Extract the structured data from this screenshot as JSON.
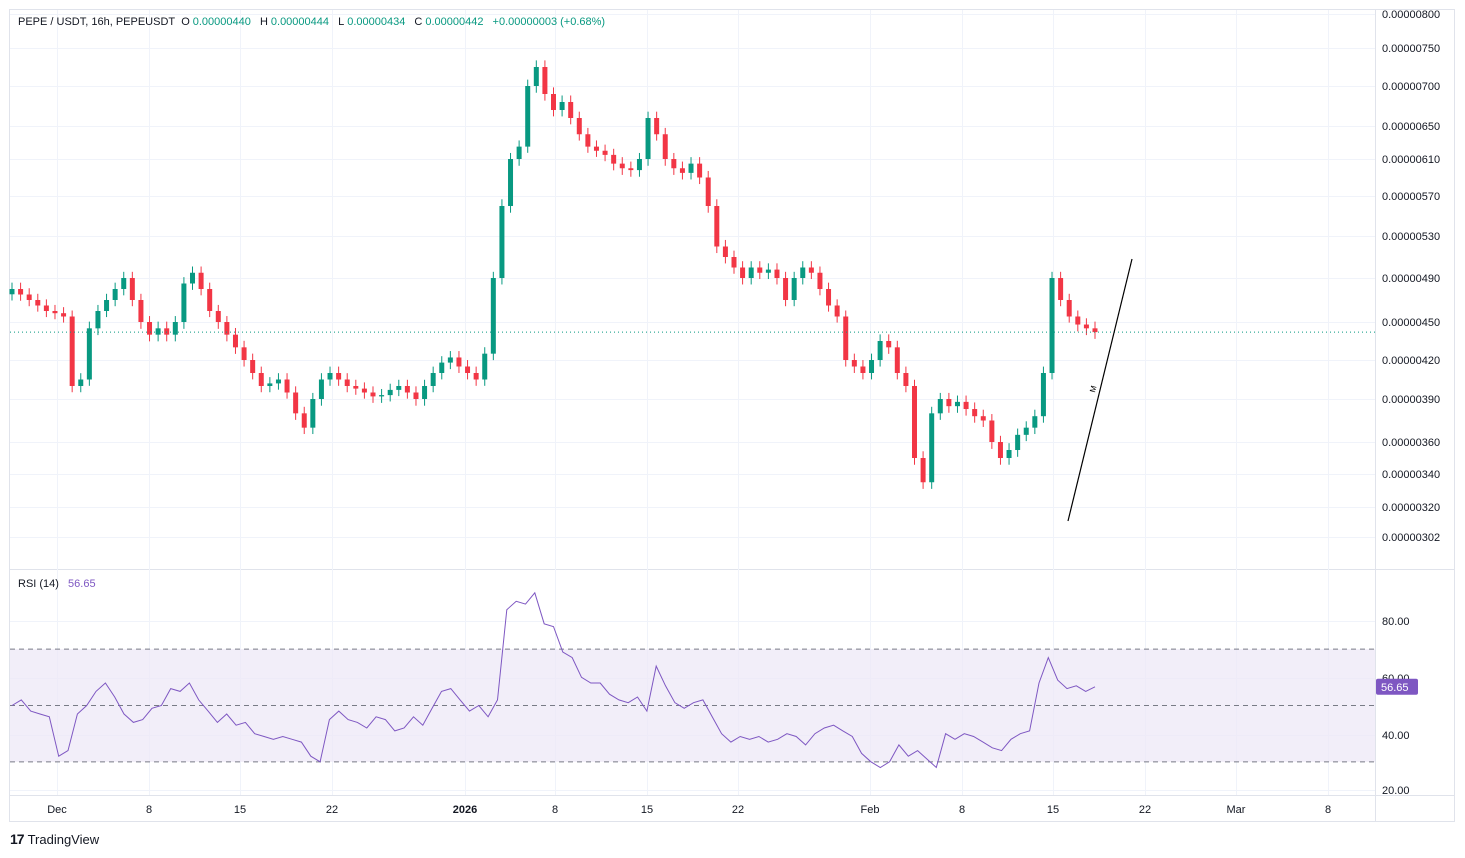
{
  "header": {
    "symbol": "PEPE / USDT, 16h, PEPEUSDT",
    "open_label": "O",
    "open": "0.00000440",
    "high_label": "H",
    "high": "0.00000444",
    "low_label": "L",
    "low": "0.00000434",
    "close_label": "C",
    "close": "0.00000442",
    "change": "+0.00000003 (+0.68%)"
  },
  "rsi_header": {
    "label": "RSI (14)",
    "value": "56.65"
  },
  "brand": {
    "logo": "17",
    "name": "TradingView"
  },
  "colors": {
    "up": "#089981",
    "down": "#f23645",
    "rsi": "#7e57c2",
    "rsi_band": "#ede7f6"
  },
  "chart_data": [
    {
      "type": "candlestick",
      "ylim": [
        3e-06,
        8.1e-06
      ],
      "y_ticks": [
        "0.00000800",
        "0.00000750",
        "0.00000700",
        "0.00000650",
        "0.00000610",
        "0.00000570",
        "0.00000530",
        "0.00000490",
        "0.00000450",
        "0.00000420",
        "0.00000390",
        "0.00000360",
        "0.00000340",
        "0.00000320",
        "0.00000302"
      ],
      "x_ticks": [
        "Dec",
        "8",
        "15",
        "22",
        "2026",
        "8",
        "15",
        "22",
        "Feb",
        "8",
        "15",
        "22",
        "Mar",
        "8"
      ],
      "last_price_line": 4.42e-06,
      "annotation": "trend line with marker \"M\"",
      "ohlc_close_series": [
        4.8e-06,
        4.75e-06,
        4.7e-06,
        4.65e-06,
        4.6e-06,
        4.58e-06,
        4.55e-06,
        4e-06,
        4.05e-06,
        4.45e-06,
        4.6e-06,
        4.7e-06,
        4.8e-06,
        4.9e-06,
        4.7e-06,
        4.5e-06,
        4.4e-06,
        4.45e-06,
        4.4e-06,
        4.5e-06,
        4.85e-06,
        4.95e-06,
        4.8e-06,
        4.6e-06,
        4.5e-06,
        4.4e-06,
        4.3e-06,
        4.2e-06,
        4.1e-06,
        4e-06,
        4.02e-06,
        4.05e-06,
        3.95e-06,
        3.8e-06,
        3.7e-06,
        3.9e-06,
        4.05e-06,
        4.1e-06,
        4.05e-06,
        4e-06,
        3.98e-06,
        3.95e-06,
        3.92e-06,
        3.93e-06,
        3.97e-06,
        4e-06,
        3.95e-06,
        3.9e-06,
        4e-06,
        4.1e-06,
        4.18e-06,
        4.22e-06,
        4.15e-06,
        4.1e-06,
        4.05e-06,
        4.25e-06,
        4.9e-06,
        5.6e-06,
        6.1e-06,
        6.25e-06,
        7e-06,
        7.25e-06,
        6.9e-06,
        6.7e-06,
        6.8e-06,
        6.6e-06,
        6.4e-06,
        6.25e-06,
        6.2e-06,
        6.15e-06,
        6.05e-06,
        6e-06,
        5.98e-06,
        6.1e-06,
        6.6e-06,
        6.4e-06,
        6.1e-06,
        6e-06,
        5.95e-06,
        6.05e-06,
        5.9e-06,
        5.6e-06,
        5.2e-06,
        5.1e-06,
        5e-06,
        4.9e-06,
        5e-06,
        4.95e-06,
        4.98e-06,
        4.9e-06,
        4.7e-06,
        4.9e-06,
        5e-06,
        4.95e-06,
        4.8e-06,
        4.65e-06,
        4.55e-06,
        4.2e-06,
        4.15e-06,
        4.1e-06,
        4.2e-06,
        4.35e-06,
        4.3e-06,
        4.1e-06,
        4e-06,
        3.5e-06,
        3.35e-06,
        3.8e-06,
        3.9e-06,
        3.85e-06,
        3.88e-06,
        3.83e-06,
        3.78e-06,
        3.75e-06,
        3.6e-06,
        3.5e-06,
        3.55e-06,
        3.65e-06,
        3.7e-06,
        3.78e-06,
        4.1e-06,
        4.9e-06,
        4.7e-06,
        4.55e-06,
        4.48e-06,
        4.45e-06,
        4.42e-06
      ],
      "note": "close values approximate, read from chart"
    },
    {
      "type": "line",
      "title": "RSI (14)",
      "ylim": [
        20,
        88
      ],
      "y_ticks": [
        "80.00",
        "60.00",
        "40.00",
        "20.00"
      ],
      "bands": [
        70,
        50,
        30
      ],
      "last_value": 56.65,
      "values": [
        50,
        52,
        48,
        47,
        46,
        32,
        34,
        47,
        50,
        55,
        58,
        53,
        47,
        44,
        45,
        49,
        50,
        56,
        55,
        58,
        52,
        48,
        44,
        47,
        43,
        44,
        40,
        39,
        38,
        39,
        38,
        37,
        32,
        30,
        45,
        48,
        45,
        44,
        42,
        46,
        45,
        41,
        42,
        46,
        43,
        49,
        55,
        56,
        52,
        48,
        50,
        46,
        52,
        84,
        87,
        86,
        90,
        79,
        78,
        69,
        67,
        60,
        58,
        58,
        54,
        52,
        51,
        53,
        48,
        64,
        57,
        51,
        49,
        51,
        52,
        46,
        40,
        37,
        39,
        38,
        39,
        37,
        38,
        40,
        39,
        36,
        40,
        42,
        43,
        41,
        39,
        33,
        30,
        28,
        30,
        36,
        32,
        34,
        31,
        28,
        40,
        38,
        40,
        39,
        37,
        35,
        34,
        38,
        40,
        41,
        58,
        67,
        59,
        56,
        57,
        55,
        56.65
      ]
    }
  ]
}
